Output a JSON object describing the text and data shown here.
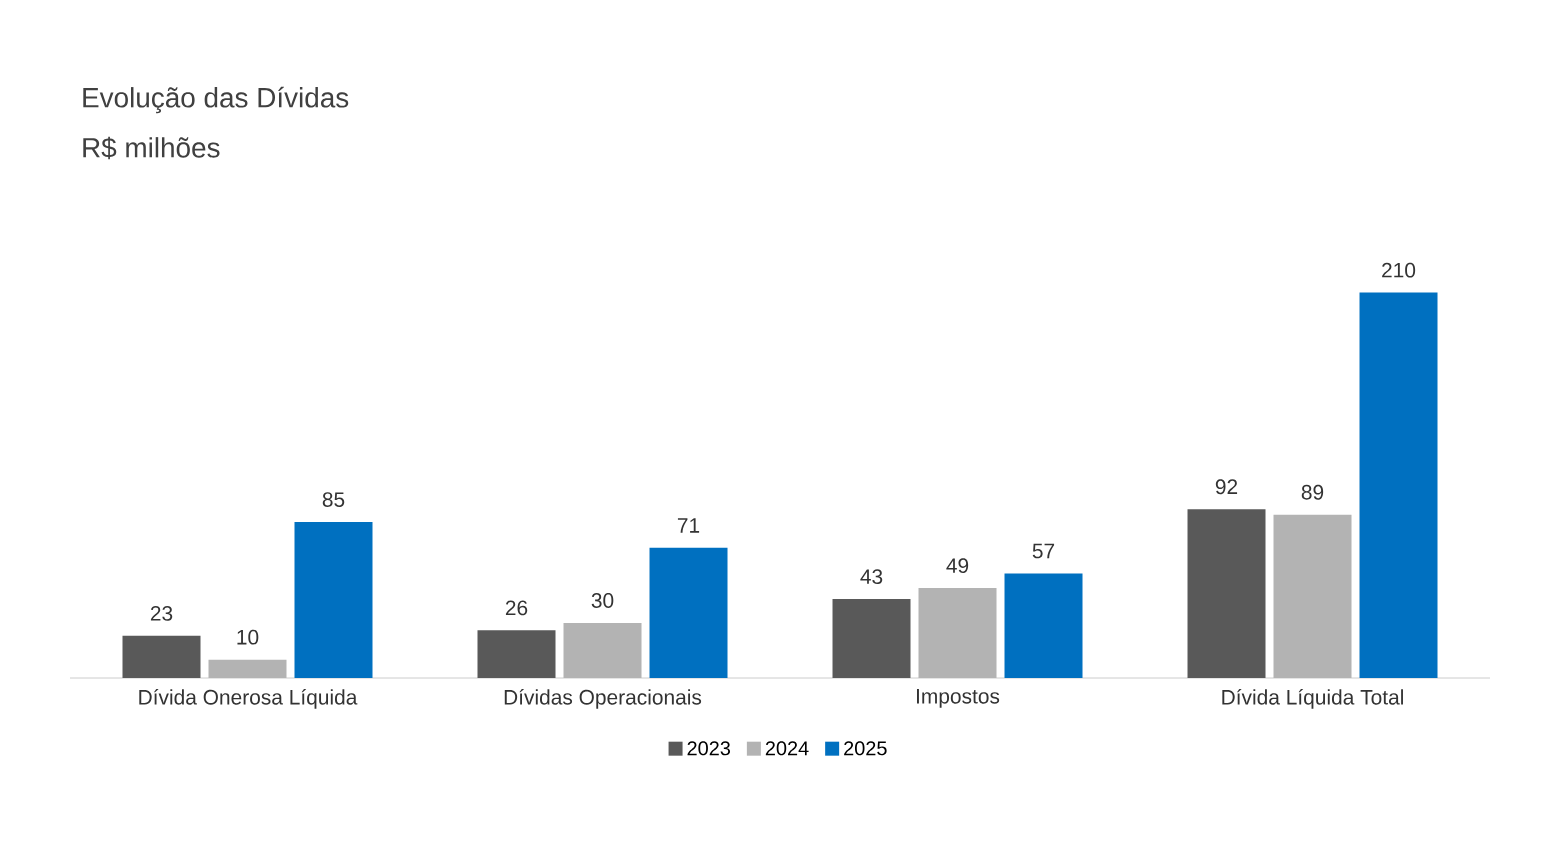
{
  "chart_data": {
    "type": "bar",
    "title": "Evolução das Dívidas",
    "subtitle": "R$ milhões",
    "categories": [
      "Dívida Onerosa Líquida",
      "Dívidas Operacionais",
      "Impostos",
      "Dívida Líquida Total"
    ],
    "series": [
      {
        "name": "2023",
        "color": "#595959",
        "values": [
          23,
          26,
          43,
          92
        ]
      },
      {
        "name": "2024",
        "color": "#b3b3b3",
        "values": [
          10,
          30,
          49,
          89
        ]
      },
      {
        "name": "2025",
        "color": "#0070c0",
        "values": [
          85,
          71,
          57,
          210
        ]
      }
    ],
    "data_labels": true,
    "legend": "bottom"
  }
}
